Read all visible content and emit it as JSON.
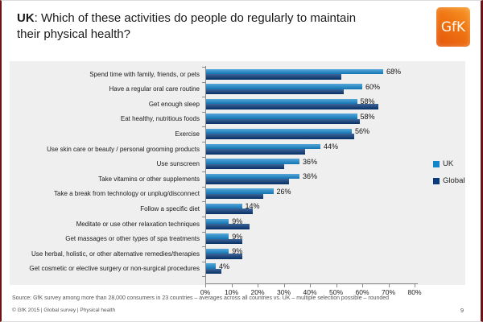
{
  "header": {
    "title_bold": "UK",
    "title_rest": ": Which of these activities do people do regularly to maintain their physical health?",
    "logo_text": "GfK"
  },
  "chart_data": {
    "type": "bar",
    "orientation": "horizontal",
    "title": "UK: Which of these activities do people do regularly to maintain their physical health?",
    "categories": [
      "Spend time with family, friends, or pets",
      "Have a regular oral care routine",
      "Get enough sleep",
      "Eat healthy, nutritious foods",
      "Exercise",
      "Use skin care or beauty / personal grooming products",
      "Use sunscreen",
      "Take vitamins or other supplements",
      "Take a break from technology or unplug/disconnect",
      "Follow a specific diet",
      "Meditate or use other relaxation techniques",
      "Get massages or other types of spa treatments",
      "Use herbal, holistic, or other alternative remedies/therapies",
      "Get cosmetic or elective surgery or non-surgical procedures"
    ],
    "series": [
      {
        "name": "UK",
        "color": "#1585cb",
        "values": [
          68,
          60,
          58,
          58,
          56,
          44,
          36,
          36,
          26,
          14,
          9,
          9,
          9,
          4
        ]
      },
      {
        "name": "Global",
        "color": "#083a7c",
        "values": [
          52,
          53,
          66,
          59,
          57,
          38,
          30,
          32,
          22,
          18,
          17,
          14,
          14,
          6
        ]
      }
    ],
    "value_label_series": "UK",
    "value_label_suffix": "%",
    "xlim": [
      0,
      80
    ],
    "x_ticks": [
      "0%",
      "10%",
      "20%",
      "30%",
      "40%",
      "50%",
      "60%",
      "70%",
      "80%"
    ],
    "grid": false,
    "legend_position": "right",
    "plot_background": "#f0eff0"
  },
  "footer": {
    "source": "Source: GfK survey among more than 28,000 consumers in 23 countries – averages across all countries vs. UK – multiple selection possible – rounded",
    "copyright": "© GfK 2015 | Global survey  | Physical health",
    "page_number": "9"
  }
}
